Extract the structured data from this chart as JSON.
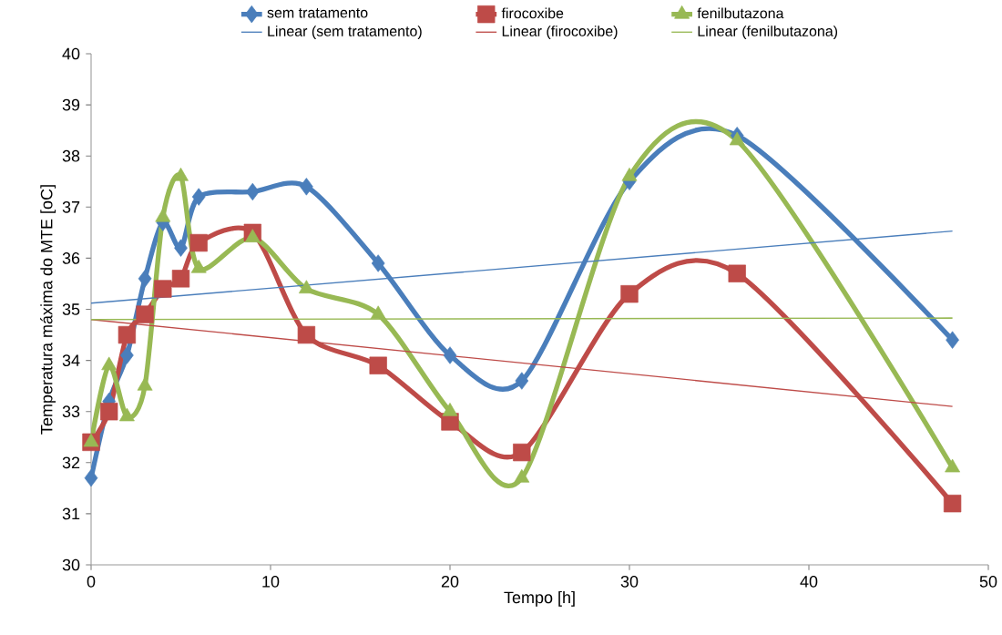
{
  "chart_data": {
    "type": "line",
    "xlabel": "Tempo [h]",
    "ylabel": "Temperatura máxima do MTE [oC]",
    "xlim": [
      0,
      50
    ],
    "ylim": [
      30,
      40
    ],
    "xticks": [
      0,
      10,
      20,
      30,
      40,
      50
    ],
    "yticks": [
      30,
      31,
      32,
      33,
      34,
      35,
      36,
      37,
      38,
      39,
      40
    ],
    "legend": "top",
    "grid": false,
    "series": [
      {
        "name": "sem tratamento",
        "color": "#4a7ebb",
        "marker": "diamond",
        "x": [
          0,
          1,
          2,
          3,
          4,
          5,
          6,
          9,
          12,
          16,
          20,
          24,
          30,
          36,
          48
        ],
        "values": [
          31.7,
          33.2,
          34.1,
          35.6,
          36.7,
          36.2,
          37.2,
          37.3,
          37.4,
          35.9,
          34.1,
          33.6,
          37.5,
          38.4,
          34.4
        ]
      },
      {
        "name": "firocoxibe",
        "color": "#be4b48",
        "marker": "square",
        "x": [
          0,
          1,
          2,
          3,
          4,
          5,
          6,
          9,
          12,
          16,
          20,
          24,
          30,
          36,
          48
        ],
        "values": [
          32.4,
          33.0,
          34.5,
          34.9,
          35.4,
          35.6,
          36.3,
          36.5,
          34.5,
          33.9,
          32.8,
          32.2,
          35.3,
          35.7,
          31.2
        ]
      },
      {
        "name": "fenilbutazona",
        "color": "#98b954",
        "marker": "triangle",
        "x": [
          0,
          1,
          2,
          3,
          4,
          5,
          6,
          9,
          12,
          16,
          20,
          24,
          30,
          36,
          48
        ],
        "values": [
          32.4,
          33.9,
          32.9,
          33.5,
          36.8,
          37.6,
          35.8,
          36.4,
          35.4,
          34.9,
          33.0,
          31.7,
          37.6,
          38.3,
          31.9
        ]
      },
      {
        "name": "Linear (sem tratamento)",
        "color": "#4a7ebb",
        "marker": "none",
        "x": [
          0,
          48
        ],
        "values": [
          35.12,
          36.53
        ]
      },
      {
        "name": "Linear (firocoxibe)",
        "color": "#be4b48",
        "marker": "none",
        "x": [
          0,
          48
        ],
        "values": [
          34.8,
          33.1
        ]
      },
      {
        "name": "Linear (fenilbutazona)",
        "color": "#98b954",
        "marker": "none",
        "x": [
          0,
          48
        ],
        "values": [
          34.8,
          34.83
        ]
      }
    ]
  }
}
